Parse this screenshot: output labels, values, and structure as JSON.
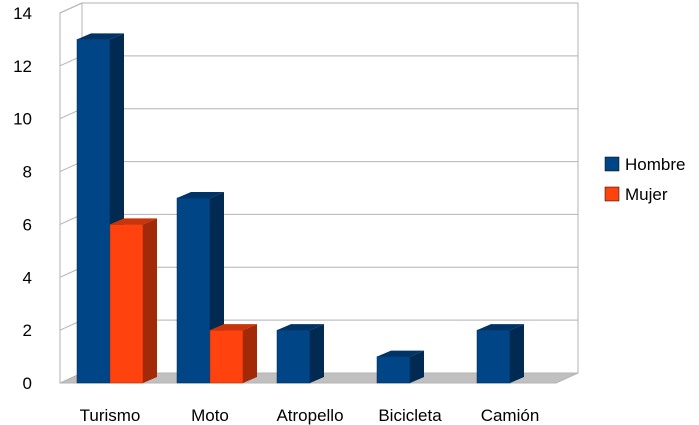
{
  "chart_data": {
    "type": "bar",
    "categories": [
      "Turismo",
      "Moto",
      "Atropello",
      "Bicicleta",
      "Camión"
    ],
    "series": [
      {
        "name": "Hombre",
        "values": [
          13,
          7,
          2,
          1,
          2
        ],
        "color": "#004586",
        "side_color": "#002a52",
        "top_color": "#003466"
      },
      {
        "name": "Mujer",
        "values": [
          6,
          2,
          null,
          null,
          null
        ],
        "color": "#ff420e",
        "side_color": "#a32a08",
        "top_color": "#c9340b"
      }
    ],
    "ylim": [
      0,
      14
    ],
    "yticks": [
      0,
      2,
      4,
      6,
      8,
      10,
      12,
      14
    ],
    "grid": true,
    "legend_position": "right",
    "style": "3d-bar"
  }
}
